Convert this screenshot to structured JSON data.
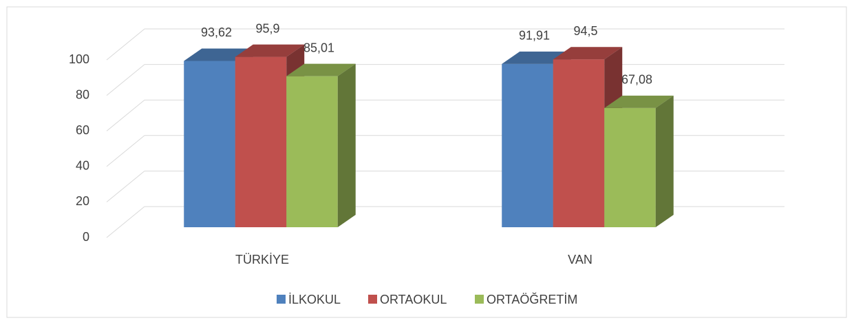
{
  "chart_data": {
    "type": "bar3d",
    "categories": [
      "TÜRKİYE",
      "VAN"
    ],
    "series": [
      {
        "name": "İLKOKUL",
        "color": "#4f81bd",
        "values": [
          93.62,
          91.91
        ],
        "value_labels": [
          "93,62",
          "91,91"
        ]
      },
      {
        "name": "ORTAOKUL",
        "color": "#c0504d",
        "values": [
          95.9,
          94.5
        ],
        "value_labels": [
          "95,9",
          "94,5"
        ]
      },
      {
        "name": "ORTAÖĞRETİM",
        "color": "#9bbb59",
        "values": [
          85.01,
          67.08
        ],
        "value_labels": [
          "85,01",
          "67,08"
        ]
      }
    ],
    "ylim": [
      0,
      100
    ],
    "yticks": [
      0,
      20,
      40,
      60,
      80,
      100
    ],
    "grid": true,
    "legend": "bottom"
  }
}
